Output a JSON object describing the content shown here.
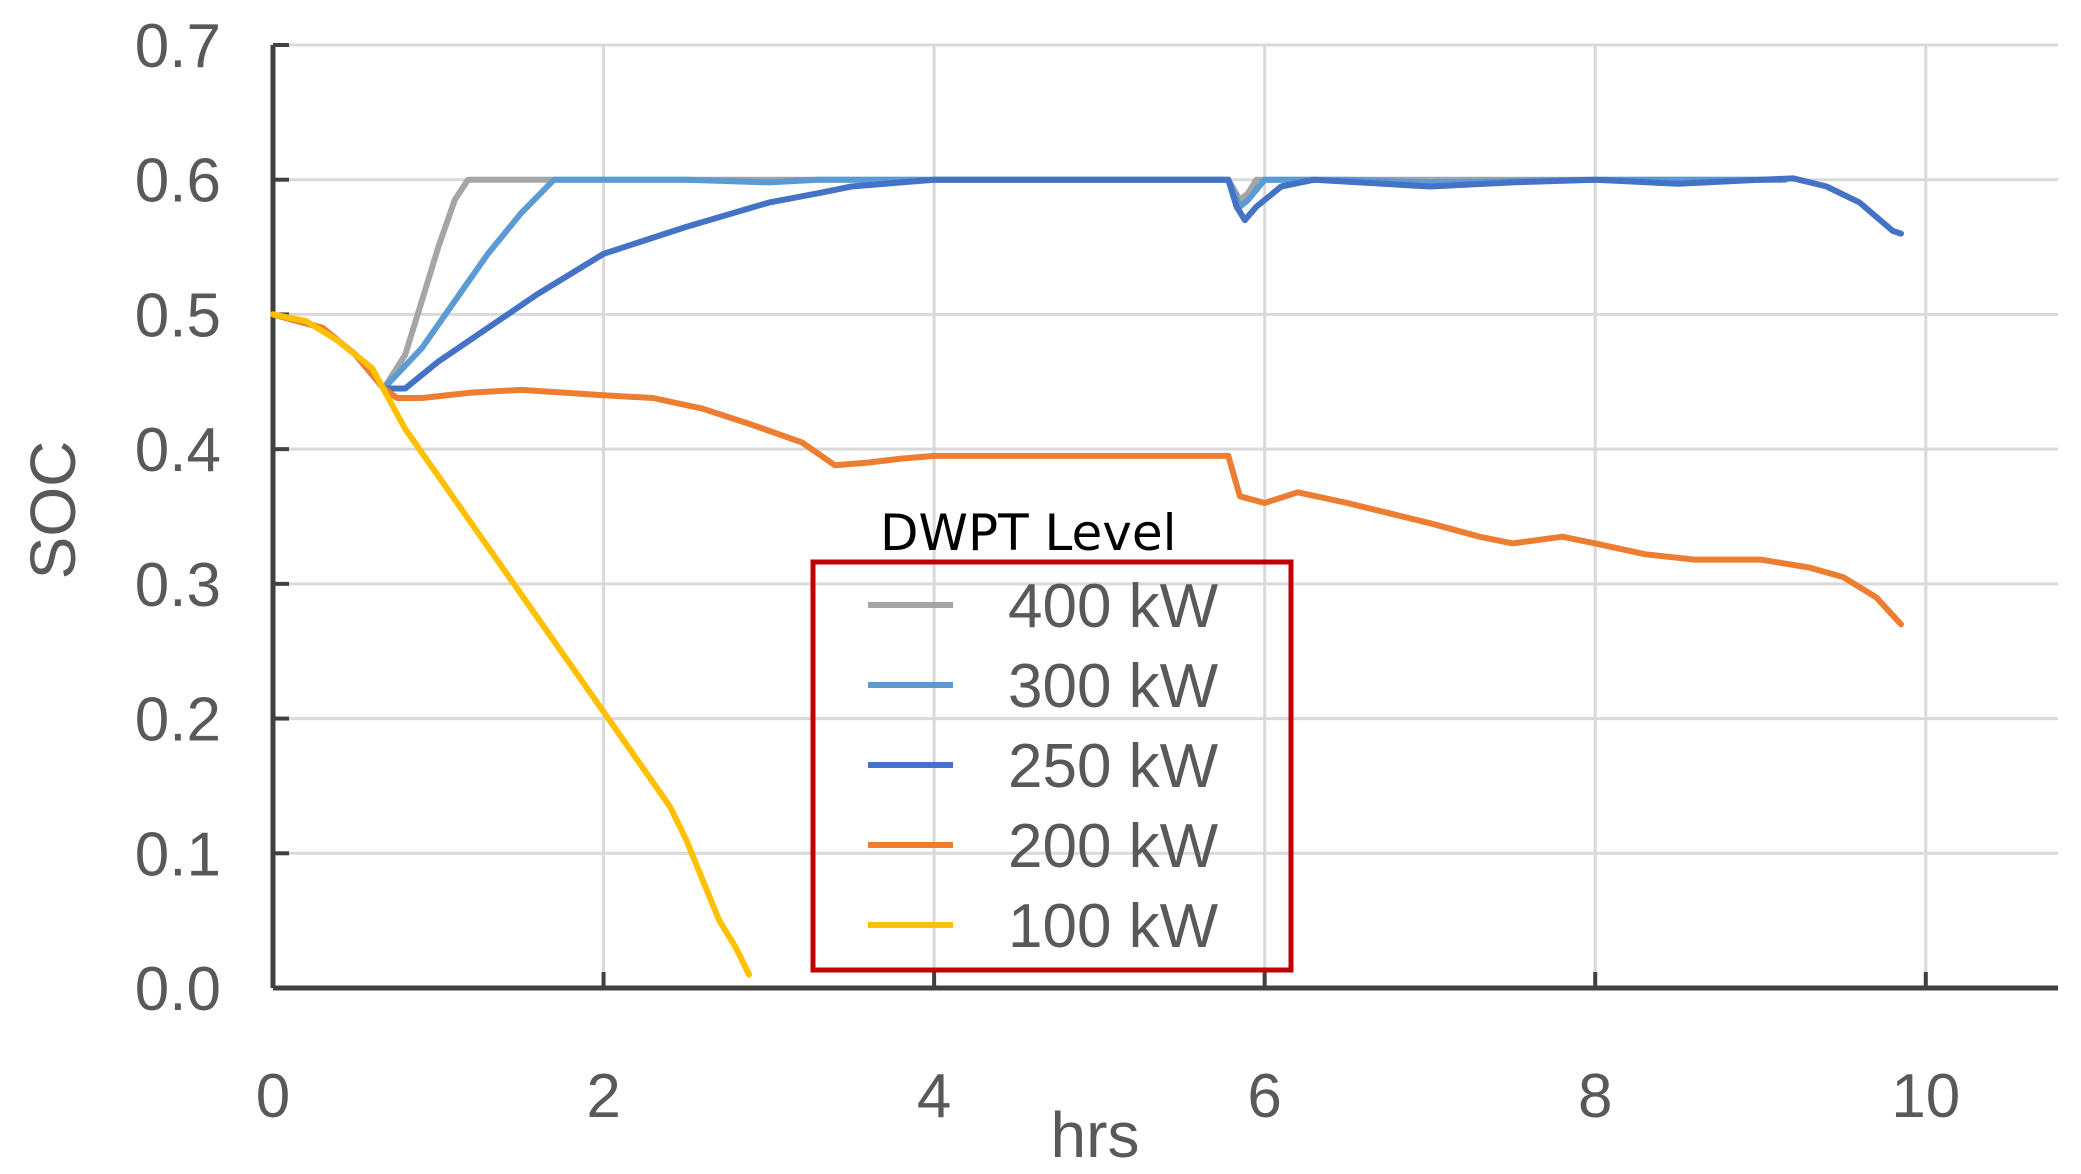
{
  "chart_data": {
    "type": "line",
    "xlabel": "hrs",
    "ylabel": "SOC",
    "xlim": [
      0,
      10.8
    ],
    "ylim": [
      0,
      0.7
    ],
    "x_ticks": [
      "0",
      "2",
      "4",
      "6",
      "8",
      "10"
    ],
    "y_ticks": [
      "0.0",
      "0.1",
      "0.2",
      "0.3",
      "0.4",
      "0.5",
      "0.6",
      "0.7"
    ],
    "grid": true,
    "legend": {
      "title": "DWPT Level",
      "placement": "bottom-center",
      "border_color": "#C00000"
    },
    "series": [
      {
        "name": "400 kW",
        "color": "#A5A5A5",
        "points": [
          [
            0,
            0.5
          ],
          [
            0.3,
            0.49
          ],
          [
            0.5,
            0.47
          ],
          [
            0.67,
            0.445
          ],
          [
            0.8,
            0.47
          ],
          [
            0.9,
            0.51
          ],
          [
            1.0,
            0.55
          ],
          [
            1.1,
            0.585
          ],
          [
            1.18,
            0.6
          ],
          [
            1.5,
            0.6
          ],
          [
            2,
            0.6
          ],
          [
            3,
            0.6
          ],
          [
            4,
            0.6
          ],
          [
            5,
            0.6
          ],
          [
            5.78,
            0.6
          ],
          [
            5.85,
            0.585
          ],
          [
            5.9,
            0.59
          ],
          [
            5.95,
            0.6
          ],
          [
            6.5,
            0.6
          ],
          [
            7,
            0.6
          ],
          [
            8,
            0.6
          ],
          [
            9,
            0.6
          ],
          [
            9.15,
            0.6
          ]
        ]
      },
      {
        "name": "300 kW",
        "color": "#5B9BD5",
        "points": [
          [
            0,
            0.5
          ],
          [
            0.3,
            0.49
          ],
          [
            0.5,
            0.47
          ],
          [
            0.67,
            0.445
          ],
          [
            0.9,
            0.475
          ],
          [
            1.1,
            0.51
          ],
          [
            1.3,
            0.545
          ],
          [
            1.5,
            0.575
          ],
          [
            1.7,
            0.6
          ],
          [
            2.5,
            0.6
          ],
          [
            3,
            0.598
          ],
          [
            3.3,
            0.6
          ],
          [
            4,
            0.6
          ],
          [
            5,
            0.6
          ],
          [
            5.78,
            0.6
          ],
          [
            5.85,
            0.58
          ],
          [
            5.9,
            0.585
          ],
          [
            6.0,
            0.6
          ],
          [
            6.5,
            0.6
          ],
          [
            7,
            0.598
          ],
          [
            8,
            0.6
          ],
          [
            9,
            0.6
          ],
          [
            9.15,
            0.6
          ]
        ]
      },
      {
        "name": "250 kW",
        "color": "#4472C4",
        "points": [
          [
            0,
            0.5
          ],
          [
            0.3,
            0.49
          ],
          [
            0.5,
            0.47
          ],
          [
            0.67,
            0.445
          ],
          [
            0.8,
            0.445
          ],
          [
            1.0,
            0.465
          ],
          [
            1.3,
            0.49
          ],
          [
            1.6,
            0.515
          ],
          [
            2.0,
            0.545
          ],
          [
            2.5,
            0.565
          ],
          [
            3.0,
            0.583
          ],
          [
            3.3,
            0.59
          ],
          [
            3.5,
            0.595
          ],
          [
            4.0,
            0.6
          ],
          [
            5.0,
            0.6
          ],
          [
            5.78,
            0.6
          ],
          [
            5.83,
            0.58
          ],
          [
            5.88,
            0.57
          ],
          [
            5.95,
            0.58
          ],
          [
            6.1,
            0.595
          ],
          [
            6.3,
            0.6
          ],
          [
            7,
            0.595
          ],
          [
            7.5,
            0.598
          ],
          [
            8,
            0.6
          ],
          [
            8.5,
            0.597
          ],
          [
            9,
            0.6
          ],
          [
            9.2,
            0.601
          ],
          [
            9.4,
            0.595
          ],
          [
            9.6,
            0.583
          ],
          [
            9.8,
            0.562
          ],
          [
            9.85,
            0.56
          ]
        ]
      },
      {
        "name": "200 kW",
        "color": "#ED7D31",
        "points": [
          [
            0,
            0.5
          ],
          [
            0.3,
            0.49
          ],
          [
            0.5,
            0.47
          ],
          [
            0.67,
            0.445
          ],
          [
            0.75,
            0.438
          ],
          [
            0.9,
            0.438
          ],
          [
            1.2,
            0.442
          ],
          [
            1.5,
            0.444
          ],
          [
            2.0,
            0.44
          ],
          [
            2.3,
            0.438
          ],
          [
            2.6,
            0.43
          ],
          [
            2.9,
            0.418
          ],
          [
            3.2,
            0.405
          ],
          [
            3.4,
            0.388
          ],
          [
            3.6,
            0.39
          ],
          [
            3.8,
            0.393
          ],
          [
            4.0,
            0.395
          ],
          [
            5.0,
            0.395
          ],
          [
            5.78,
            0.395
          ],
          [
            5.85,
            0.365
          ],
          [
            6.0,
            0.36
          ],
          [
            6.2,
            0.368
          ],
          [
            6.5,
            0.36
          ],
          [
            7.0,
            0.345
          ],
          [
            7.3,
            0.335
          ],
          [
            7.5,
            0.33
          ],
          [
            7.8,
            0.335
          ],
          [
            8.0,
            0.33
          ],
          [
            8.3,
            0.322
          ],
          [
            8.6,
            0.318
          ],
          [
            9.0,
            0.318
          ],
          [
            9.3,
            0.312
          ],
          [
            9.5,
            0.305
          ],
          [
            9.7,
            0.29
          ],
          [
            9.85,
            0.27
          ]
        ]
      },
      {
        "name": "100 kW",
        "color": "#FFC000",
        "points": [
          [
            0,
            0.5
          ],
          [
            0.2,
            0.495
          ],
          [
            0.4,
            0.48
          ],
          [
            0.6,
            0.46
          ],
          [
            0.8,
            0.415
          ],
          [
            1.0,
            0.38
          ],
          [
            1.2,
            0.345
          ],
          [
            1.4,
            0.31
          ],
          [
            1.6,
            0.275
          ],
          [
            1.8,
            0.24
          ],
          [
            2.0,
            0.205
          ],
          [
            2.2,
            0.17
          ],
          [
            2.4,
            0.135
          ],
          [
            2.5,
            0.11
          ],
          [
            2.6,
            0.08
          ],
          [
            2.7,
            0.05
          ],
          [
            2.8,
            0.03
          ],
          [
            2.88,
            0.01
          ]
        ]
      }
    ]
  }
}
